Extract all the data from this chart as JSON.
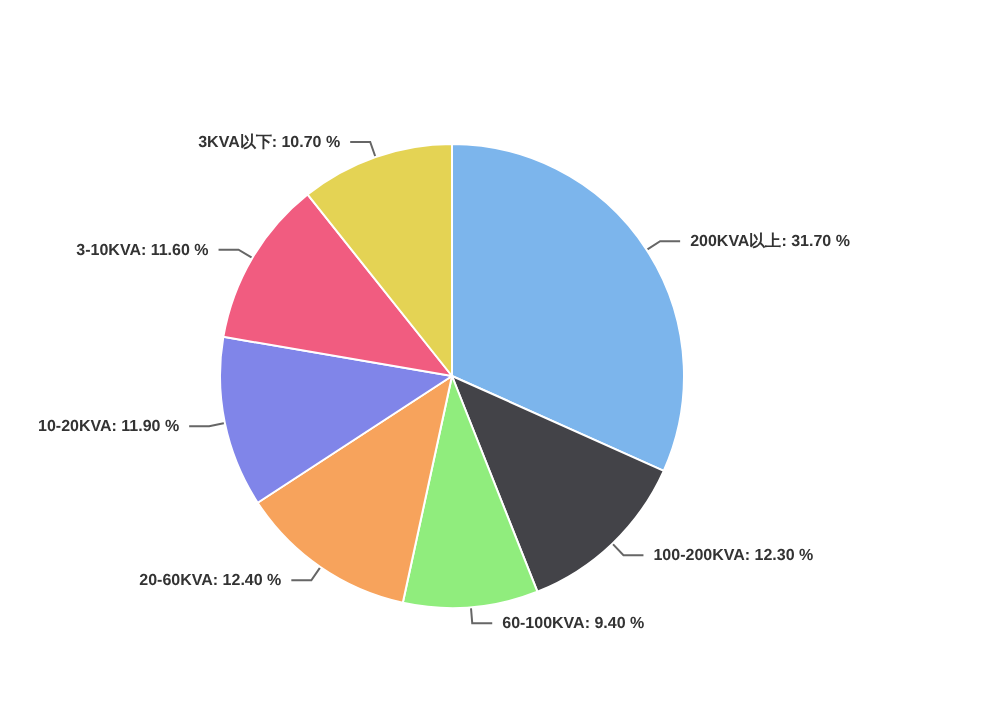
{
  "chart_data": {
    "type": "pie",
    "categories": [
      "200KVA以上",
      "100-200KVA",
      "60-100KVA",
      "20-60KVA",
      "10-20KVA",
      "3-10KVA",
      "3KVA以下"
    ],
    "values": [
      31.7,
      12.3,
      9.4,
      12.4,
      11.9,
      11.6,
      10.7
    ],
    "value_labels": [
      "31.70 %",
      "12.30 %",
      "9.40 %",
      "12.40 %",
      "11.90 %",
      "11.60 %",
      "10.70 %"
    ],
    "colors": [
      "#7cb5ec",
      "#434348",
      "#90ed7d",
      "#f7a35c",
      "#8085e9",
      "#f15c80",
      "#e4d354"
    ],
    "legend": false
  }
}
